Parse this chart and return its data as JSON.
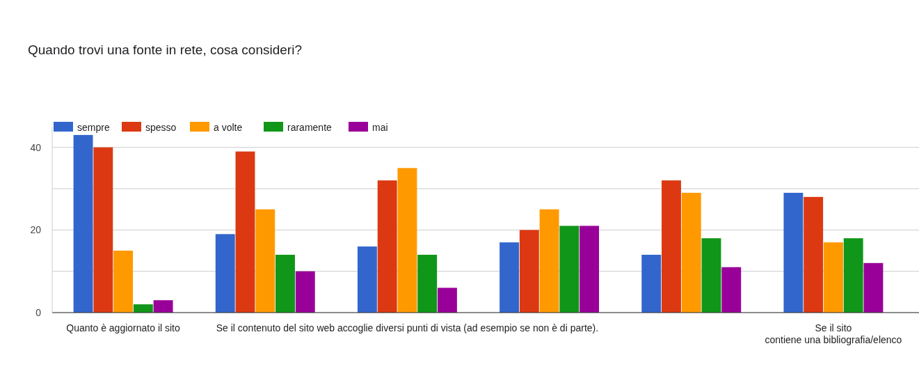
{
  "chart_data": {
    "type": "bar",
    "title": "Quando trovi una fonte in rete, cosa consideri?",
    "categories": [
      "Quanto è aggiornato il sito",
      null,
      "Se il contenuto del sito web accoglie diversi punti di vista (ad esempio se non è di parte).",
      null,
      null,
      "Se il sito contiene una bibliografia/elenco"
    ],
    "series": [
      {
        "name": "sempre",
        "color": "#3366cc",
        "values": [
          43,
          19,
          16,
          17,
          14,
          29
        ]
      },
      {
        "name": "spesso",
        "color": "#dc3912",
        "values": [
          40,
          39,
          32,
          20,
          32,
          28
        ]
      },
      {
        "name": "a volte",
        "color": "#ff9900",
        "values": [
          15,
          25,
          35,
          25,
          29,
          17
        ]
      },
      {
        "name": "raramente",
        "color": "#109618",
        "values": [
          2,
          14,
          14,
          21,
          18,
          18
        ]
      },
      {
        "name": "mai",
        "color": "#990099",
        "values": [
          3,
          10,
          6,
          21,
          11,
          12
        ]
      }
    ],
    "ylim": [
      0,
      45
    ],
    "yticks": [
      0,
      {
        "value": 10,
        "label": null
      },
      20,
      {
        "value": 30,
        "label": null
      },
      40
    ],
    "grid": "y",
    "legend": "top"
  }
}
